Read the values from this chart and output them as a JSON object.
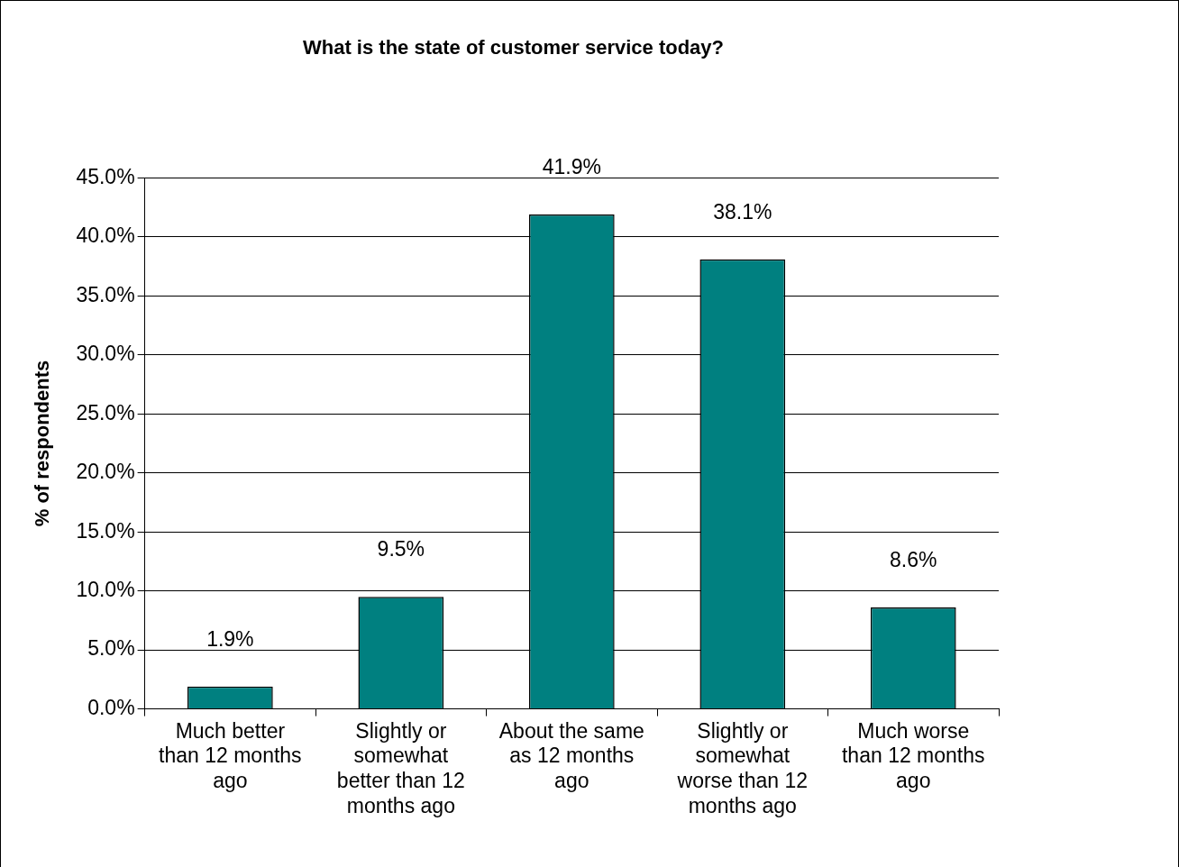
{
  "chart_data": {
    "type": "bar",
    "title": "What is the state of customer service today?",
    "ylabel": "% of respondents",
    "categories": [
      "Much better than 12 months ago",
      "Slightly or somewhat better than 12 months ago",
      "About the same as 12 months ago",
      "Slightly or somewhat worse than 12 months ago",
      "Much worse than 12 months ago"
    ],
    "values": [
      1.9,
      9.5,
      41.9,
      38.1,
      8.6
    ],
    "value_labels": [
      "1.9%",
      "9.5%",
      "41.9%",
      "38.1%",
      "8.6%"
    ],
    "color": "#008080",
    "ylim": [
      0,
      45
    ],
    "yticks": [
      {
        "value": 0,
        "label": "0.0%"
      },
      {
        "value": 5,
        "label": "5.0%"
      },
      {
        "value": 10,
        "label": "10.0%"
      },
      {
        "value": 15,
        "label": "15.0%"
      },
      {
        "value": 20,
        "label": "20.0%"
      },
      {
        "value": 25,
        "label": "25.0%"
      },
      {
        "value": 30,
        "label": "30.0%"
      },
      {
        "value": 35,
        "label": "35.0%"
      },
      {
        "value": 40,
        "label": "40.0%"
      },
      {
        "value": 45,
        "label": "45.0%"
      }
    ],
    "grid": "y",
    "legend": false
  }
}
